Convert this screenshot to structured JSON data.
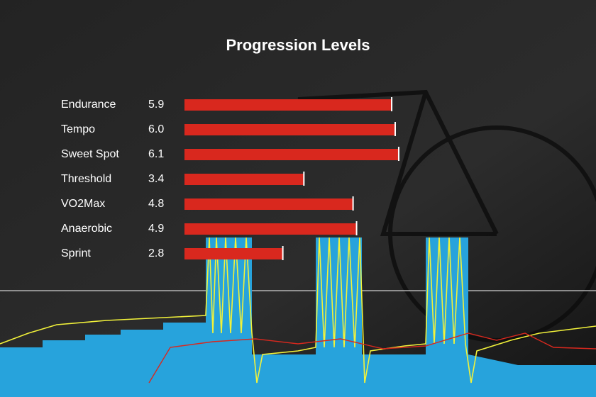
{
  "chart_data": {
    "type": "bar",
    "orientation": "horizontal",
    "title": "Progression Levels",
    "categories": [
      "Endurance",
      "Tempo",
      "Sweet Spot",
      "Threshold",
      "VO2Max",
      "Anaerobic",
      "Sprint"
    ],
    "values": [
      5.9,
      6.0,
      6.1,
      3.4,
      4.8,
      4.9,
      2.8
    ],
    "value_labels": [
      "5.9",
      "6.0",
      "6.1",
      "3.4",
      "4.8",
      "4.9",
      "2.8"
    ],
    "color": "#d9281e"
  }
}
